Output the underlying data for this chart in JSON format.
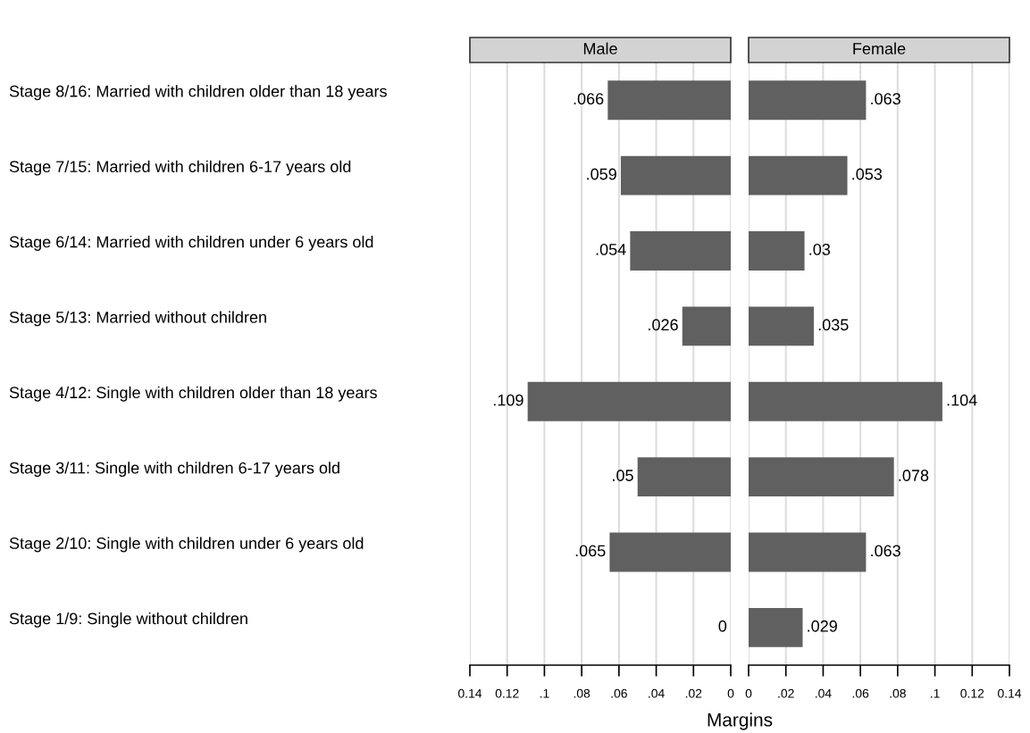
{
  "chart_data": [
    {
      "type": "bar",
      "orientation": "horizontal",
      "title": "Male",
      "xlabel": "Margins",
      "categories": [
        "Stage 8/16: Married with children older than 18 years",
        "Stage 7/15: Married with children 6-17 years old",
        "Stage 6/14: Married with children under 6 years old",
        "Stage 5/13: Married without children",
        "Stage 4/12: Single with children older than 18 years",
        "Stage 3/11: Single with children 6-17 years old",
        "Stage 2/10: Single with children under 6 years old",
        "Stage 1/9: Single without children"
      ],
      "values": [
        0.066,
        0.059,
        0.054,
        0.026,
        0.109,
        0.05,
        0.065,
        0
      ],
      "value_labels": [
        ".066",
        ".059",
        ".054",
        ".026",
        ".109",
        ".05",
        ".065",
        "0"
      ],
      "color": "#606060",
      "xlim": [
        0.14,
        0
      ],
      "xticks": [
        0.14,
        0.12,
        {
          "value": 0.1,
          "label": ".1"
        },
        {
          "value": 0.08,
          "label": ".08"
        },
        {
          "value": 0.06,
          "label": ".06"
        },
        {
          "value": 0.04,
          "label": ".04"
        },
        {
          "value": 0.02,
          "label": ".02"
        },
        0
      ],
      "grid": "x"
    },
    {
      "type": "bar",
      "orientation": "horizontal",
      "title": "Female",
      "categories": [
        null,
        null,
        null,
        null,
        null,
        null,
        null,
        null
      ],
      "values": [
        0.063,
        0.053,
        0.03,
        0.035,
        0.104,
        0.078,
        0.063,
        0.029
      ],
      "value_labels": [
        ".063",
        ".053",
        ".03",
        ".035",
        ".104",
        ".078",
        ".063",
        ".029"
      ],
      "color": "#606060",
      "xlim": [
        0,
        0.14
      ],
      "xticks": [
        0,
        {
          "value": 0.02,
          "label": ".02"
        },
        {
          "value": 0.04,
          "label": ".04"
        },
        {
          "value": 0.06,
          "label": ".06"
        },
        {
          "value": 0.08,
          "label": ".08"
        },
        {
          "value": 0.1,
          "label": ".1"
        },
        0.12,
        0.14
      ],
      "grid": "x",
      "tick_labels": "x"
    }
  ]
}
